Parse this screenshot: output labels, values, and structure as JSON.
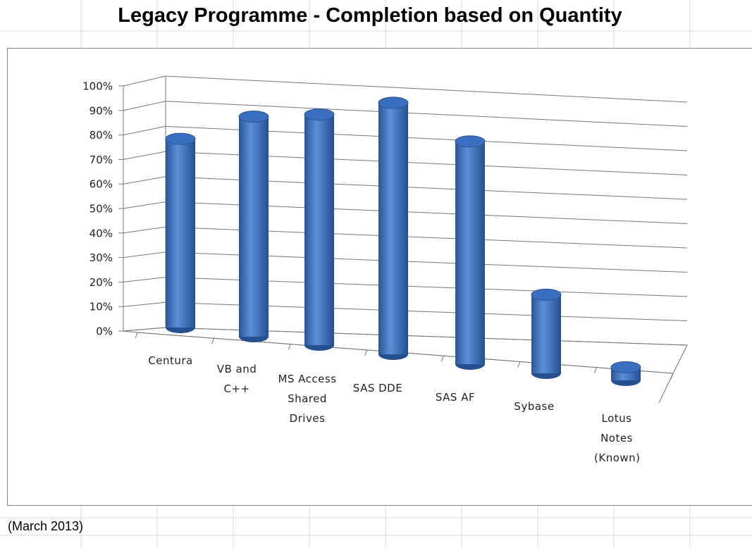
{
  "chart_data": {
    "type": "cylinder3d",
    "title": "Legacy Programme - Completion based on Quantity",
    "note": "(March 2013)",
    "categories": [
      "Centura",
      "VB and C++",
      "MS Access Shared Drives",
      "SAS DDE",
      "SAS AF",
      "Sybase",
      "Lotus Notes (Known)"
    ],
    "values": [
      72,
      84,
      88,
      96,
      85,
      30,
      5
    ],
    "color": "#3a6fbf",
    "ylim": [
      0,
      100
    ],
    "yticks": [
      {
        "value": 0,
        "label": "0%"
      },
      {
        "value": 10,
        "label": "10%"
      },
      {
        "value": 20,
        "label": "20%"
      },
      {
        "value": 30,
        "label": "30%"
      },
      {
        "value": 40,
        "label": "40%"
      },
      {
        "value": 50,
        "label": "50%"
      },
      {
        "value": 60,
        "label": "60%"
      },
      {
        "value": 70,
        "label": "70%"
      },
      {
        "value": 80,
        "label": "80%"
      },
      {
        "value": 90,
        "label": "90%"
      },
      {
        "value": 100,
        "label": "100%"
      }
    ],
    "grid": true
  }
}
